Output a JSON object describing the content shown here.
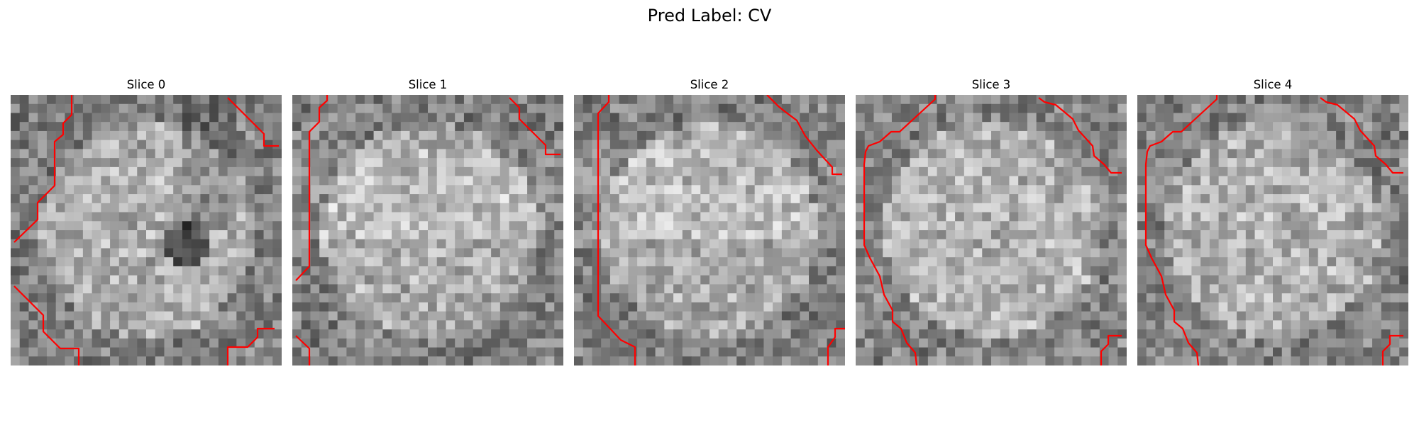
{
  "figure": {
    "title": "Pred Label: CV"
  },
  "panels": [
    {
      "title": "Slice 0",
      "seed": 11,
      "style": "lesion"
    },
    {
      "title": "Slice 1",
      "seed": 23,
      "style": "bright"
    },
    {
      "title": "Slice 2",
      "seed": 37,
      "style": "bright"
    },
    {
      "title": "Slice 3",
      "seed": 51,
      "style": "uniform"
    },
    {
      "title": "Slice 4",
      "seed": 67,
      "style": "uniform"
    }
  ],
  "colors": {
    "contour": "#ff0000",
    "background": "#ffffff",
    "colormap": "gray"
  }
}
